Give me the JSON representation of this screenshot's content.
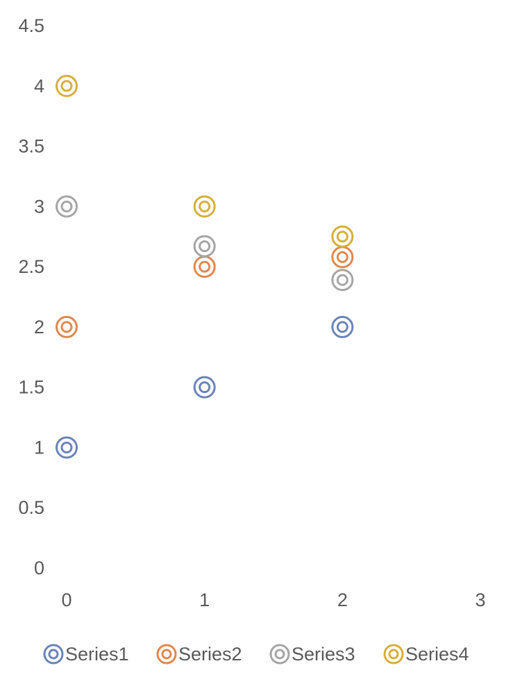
{
  "chart_data": {
    "type": "scatter",
    "title": "",
    "xlabel": "",
    "ylabel": "",
    "xlim": [
      0,
      3
    ],
    "ylim": [
      0,
      4.5
    ],
    "x_ticks": [
      "0",
      "1",
      "2",
      "3"
    ],
    "y_ticks": [
      "0",
      "0.5",
      "1",
      "1.5",
      "2",
      "2.5",
      "3",
      "3.5",
      "4",
      "4.5"
    ],
    "grid": false,
    "legend_position": "bottom",
    "marker": "double-circle",
    "series": [
      {
        "name": "Series1",
        "color": "#6A84B7",
        "points": [
          [
            0,
            1
          ],
          [
            1,
            1.5
          ],
          [
            2,
            2
          ]
        ]
      },
      {
        "name": "Series2",
        "color": "#E0874F",
        "points": [
          [
            0,
            2
          ],
          [
            1,
            2.5
          ],
          [
            2,
            2.58
          ]
        ]
      },
      {
        "name": "Series3",
        "color": "#A5A5A5",
        "points": [
          [
            0,
            3
          ],
          [
            1,
            2.67
          ],
          [
            2,
            2.39
          ]
        ]
      },
      {
        "name": "Series4",
        "color": "#D6AF3A",
        "points": [
          [
            0,
            4
          ],
          [
            1,
            3
          ],
          [
            2,
            2.75
          ]
        ]
      }
    ]
  }
}
